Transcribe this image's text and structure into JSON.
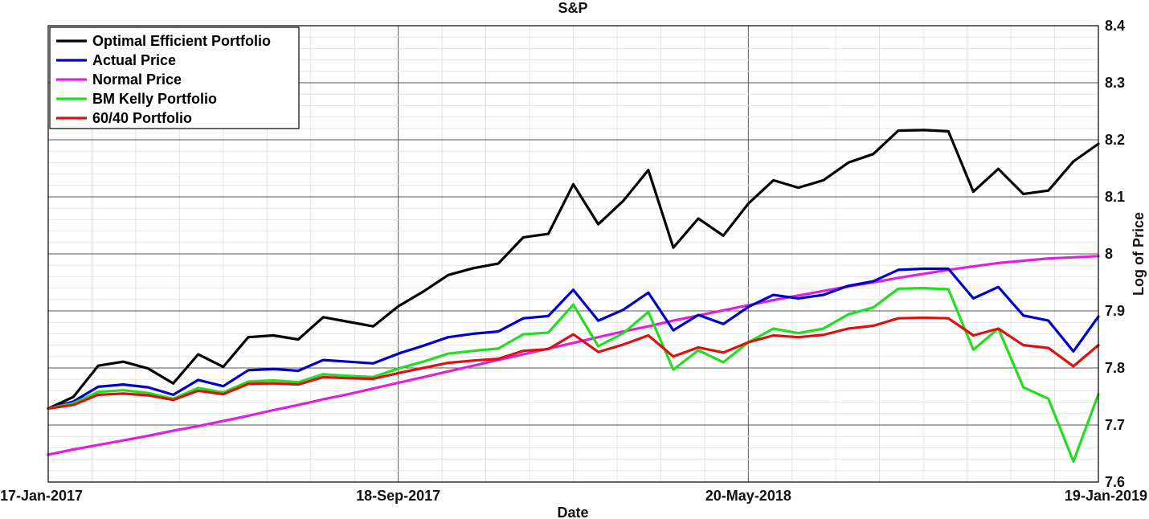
{
  "chart_data": {
    "type": "line",
    "title": "S&P",
    "xlabel": "Date",
    "ylabel": "Log of Price",
    "x_ticks": [
      "17-Jan-2017",
      "18-Sep-2017",
      "20-May-2018",
      "19-Jan-2019"
    ],
    "ylim": [
      7.6,
      8.4
    ],
    "y_ticks": [
      "7.6",
      "7.7",
      "7.8",
      "7.9",
      "8",
      "8.1",
      "8.2",
      "8.3",
      "8.4"
    ],
    "grid": true,
    "legend_position": "top-left",
    "series": [
      {
        "name": "Optimal Efficient Portfolio",
        "color": "#000000",
        "values": [
          7.729,
          7.749,
          7.804,
          7.811,
          7.799,
          7.773,
          7.824,
          7.802,
          7.854,
          7.857,
          7.85,
          7.889,
          7.881,
          7.873,
          7.908,
          7.934,
          7.963,
          7.975,
          7.983,
          8.029,
          8.035,
          8.122,
          8.052,
          8.093,
          8.147,
          8.011,
          8.062,
          8.032,
          8.088,
          8.129,
          8.116,
          8.129,
          8.16,
          8.175,
          8.216,
          8.217,
          8.215,
          8.109,
          8.149,
          8.105,
          8.111,
          8.162,
          8.193
        ]
      },
      {
        "name": "Actual Price",
        "color": "#0000cc",
        "values": [
          7.729,
          7.741,
          7.767,
          7.771,
          7.766,
          7.753,
          7.779,
          7.768,
          7.796,
          7.798,
          7.795,
          7.814,
          7.811,
          7.808,
          7.825,
          7.839,
          7.854,
          7.86,
          7.864,
          7.887,
          7.891,
          7.937,
          7.883,
          7.902,
          7.932,
          7.866,
          7.893,
          7.877,
          7.907,
          7.928,
          7.922,
          7.928,
          7.944,
          7.952,
          7.972,
          7.974,
          7.974,
          7.922,
          7.942,
          7.892,
          7.883,
          7.829,
          7.89
        ]
      },
      {
        "name": "Normal Price",
        "color": "#e020e0",
        "values": [
          7.648,
          7.657,
          7.665,
          7.673,
          7.681,
          7.69,
          7.698,
          7.707,
          7.716,
          7.726,
          7.735,
          7.745,
          7.754,
          7.764,
          7.774,
          7.784,
          7.794,
          7.804,
          7.814,
          7.824,
          7.834,
          7.844,
          7.854,
          7.864,
          7.873,
          7.883,
          7.892,
          7.901,
          7.91,
          7.919,
          7.927,
          7.935,
          7.943,
          7.95,
          7.958,
          7.965,
          7.972,
          7.978,
          7.984,
          7.988,
          7.992,
          7.994,
          7.996
        ]
      },
      {
        "name": "BM Kelly Portfolio",
        "color": "#22dd22",
        "values": [
          7.729,
          7.738,
          7.758,
          7.761,
          7.756,
          7.746,
          7.765,
          7.757,
          7.776,
          7.778,
          7.775,
          7.789,
          7.786,
          7.784,
          7.799,
          7.811,
          7.825,
          7.83,
          7.834,
          7.859,
          7.862,
          7.911,
          7.838,
          7.861,
          7.898,
          7.797,
          7.831,
          7.81,
          7.845,
          7.869,
          7.861,
          7.869,
          7.894,
          7.906,
          7.939,
          7.94,
          7.938,
          7.832,
          7.869,
          7.766,
          7.746,
          7.636,
          7.754
        ]
      },
      {
        "name": "60/40 Portfolio",
        "color": "#dd1111",
        "values": [
          7.729,
          7.735,
          7.753,
          7.755,
          7.752,
          7.744,
          7.76,
          7.754,
          7.772,
          7.773,
          7.771,
          7.784,
          7.782,
          7.781,
          7.791,
          7.8,
          7.809,
          7.813,
          7.816,
          7.83,
          7.833,
          7.859,
          7.828,
          7.841,
          7.857,
          7.82,
          7.836,
          7.827,
          7.845,
          7.857,
          7.854,
          7.858,
          7.869,
          7.874,
          7.887,
          7.888,
          7.887,
          7.857,
          7.869,
          7.84,
          7.835,
          7.803,
          7.84
        ]
      }
    ]
  }
}
